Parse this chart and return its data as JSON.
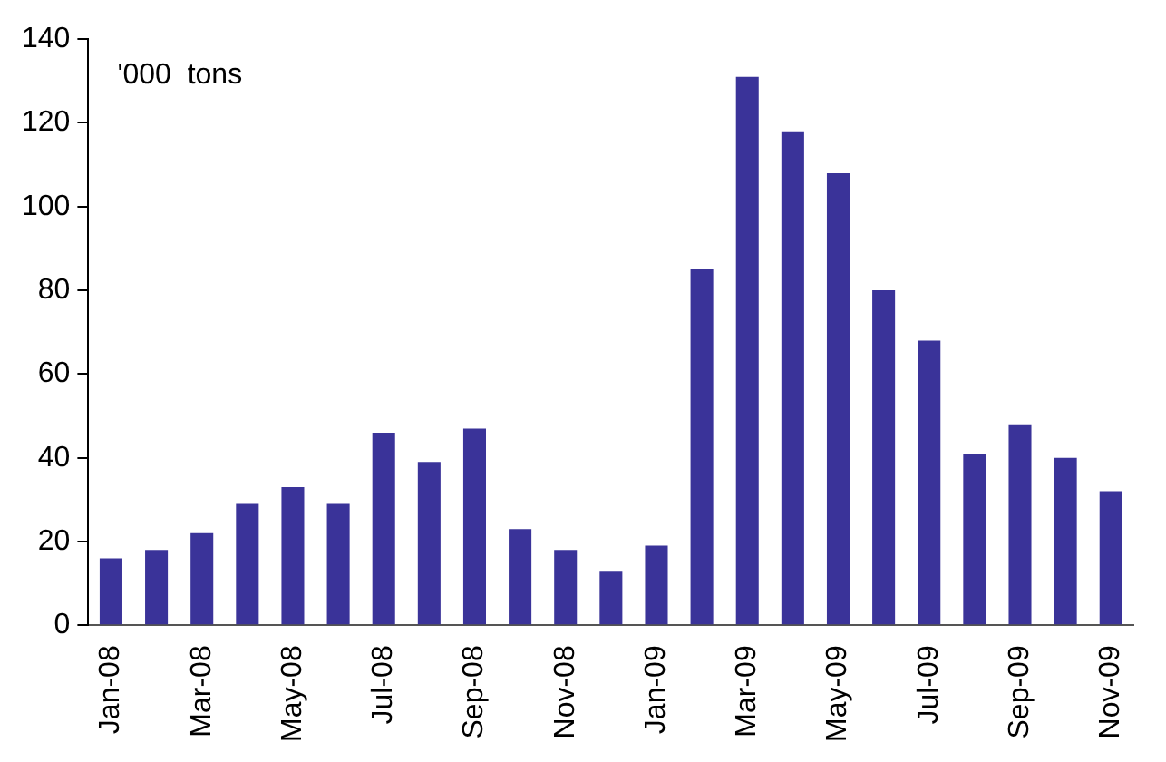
{
  "chart_data": {
    "type": "bar",
    "categories": [
      "Jan-08",
      null,
      "Mar-08",
      null,
      "May-08",
      null,
      "Jul-08",
      null,
      "Sep-08",
      null,
      "Nov-08",
      null,
      "Jan-09",
      null,
      "Mar-09",
      null,
      "May-09",
      null,
      "Jul-09",
      null,
      "Sep-09",
      null,
      "Nov-09"
    ],
    "values": [
      16,
      18,
      22,
      29,
      33,
      29,
      46,
      39,
      47,
      23,
      18,
      13,
      19,
      85,
      131,
      118,
      108,
      80,
      68,
      41,
      48,
      40,
      32
    ],
    "color": "#3a3399",
    "ylim": [
      0,
      140
    ],
    "yticks": [
      0,
      20,
      40,
      60,
      80,
      100,
      120,
      140
    ],
    "grid": false,
    "annotations": [
      "'000  tons"
    ]
  }
}
